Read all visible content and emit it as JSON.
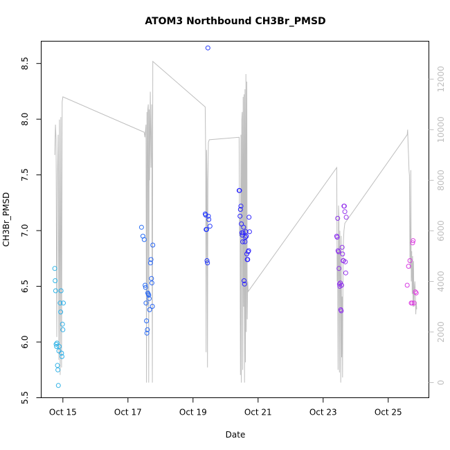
{
  "chart_data": {
    "type": "scatter",
    "title": "ATOM3 Northbound CH3Br_PMSD",
    "xlabel": "Date",
    "ylabel": "CH3Br_PMSD",
    "x_ticks": [
      "Oct 15",
      "Oct 17",
      "Oct 19",
      "Oct 21",
      "Oct 23",
      "Oct 25"
    ],
    "y_ticks": [
      "5.5",
      "6.0",
      "6.5",
      "7.0",
      "7.5",
      "8.0",
      "8.5"
    ],
    "y2_ticks": [
      "0",
      "2000",
      "4000",
      "6000",
      "8000",
      "10000",
      "12000"
    ],
    "xlim": [
      "2016-10-14 08:00",
      "2016-10-26 06:00"
    ],
    "ylim": [
      5.5,
      8.7
    ],
    "y2lim": [
      -600,
      13500
    ],
    "grid": false,
    "colors": {
      "points_start": "#2eb4e6",
      "points_mid": "#2020ff",
      "points_end": "#e03ce0",
      "secondary_line": "#bebebe",
      "axis": "#000000",
      "right_axis": "#bebebe"
    },
    "series": [
      {
        "type": "points",
        "points": [
          [
            "2016-10-14 18:00",
            6.66
          ],
          [
            "2016-10-14 18:20",
            6.55
          ],
          [
            "2016-10-14 18:40",
            6.46
          ],
          [
            "2016-10-14 19:00",
            5.98
          ],
          [
            "2016-10-14 19:20",
            5.96
          ],
          [
            "2016-10-14 19:40",
            5.99
          ],
          [
            "2016-10-14 20:00",
            5.79
          ],
          [
            "2016-10-14 20:20",
            5.75
          ],
          [
            "2016-10-14 20:40",
            5.61
          ],
          [
            "2016-10-14 21:00",
            5.92
          ],
          [
            "2016-10-14 21:20",
            5.96
          ],
          [
            "2016-10-14 22:00",
            6.35
          ],
          [
            "2016-10-14 22:20",
            6.27
          ],
          [
            "2016-10-14 22:40",
            6.46
          ],
          [
            "2016-10-14 23:00",
            5.9
          ],
          [
            "2016-10-14 23:20",
            5.87
          ],
          [
            "2016-10-14 23:40",
            6.16
          ],
          [
            "2016-10-15 00:00",
            6.11
          ],
          [
            "2016-10-15 00:20",
            6.35
          ],
          [
            "2016-10-17 10:00",
            7.03
          ],
          [
            "2016-10-17 11:00",
            6.95
          ],
          [
            "2016-10-17 12:00",
            6.92
          ],
          [
            "2016-10-17 12:40",
            6.51
          ],
          [
            "2016-10-17 13:00",
            6.49
          ],
          [
            "2016-10-17 13:20",
            6.35
          ],
          [
            "2016-10-17 13:40",
            6.19
          ],
          [
            "2016-10-17 14:00",
            6.08
          ],
          [
            "2016-10-17 14:20",
            6.11
          ],
          [
            "2016-10-17 14:40",
            6.44
          ],
          [
            "2016-10-17 15:00",
            6.43
          ],
          [
            "2016-10-17 15:20",
            6.42
          ],
          [
            "2016-10-17 15:40",
            6.39
          ],
          [
            "2016-10-17 16:00",
            6.29
          ],
          [
            "2016-10-17 16:40",
            6.71
          ],
          [
            "2016-10-17 17:00",
            6.74
          ],
          [
            "2016-10-17 17:20",
            6.57
          ],
          [
            "2016-10-17 17:40",
            6.53
          ],
          [
            "2016-10-17 18:00",
            6.32
          ],
          [
            "2016-10-17 18:20",
            6.87
          ],
          [
            "2016-10-19 09:00",
            7.15
          ],
          [
            "2016-10-19 09:20",
            7.14
          ],
          [
            "2016-10-19 09:40",
            7.01
          ],
          [
            "2016-10-19 10:00",
            7.01
          ],
          [
            "2016-10-19 10:20",
            6.73
          ],
          [
            "2016-10-19 10:40",
            6.71
          ],
          [
            "2016-10-19 11:00",
            8.64
          ],
          [
            "2016-10-19 11:20",
            7.13
          ],
          [
            "2016-10-19 11:40",
            7.1
          ],
          [
            "2016-10-19 12:30",
            7.04
          ],
          [
            "2016-10-20 10:00",
            7.36
          ],
          [
            "2016-10-20 10:20",
            7.36
          ],
          [
            "2016-10-20 10:40",
            7.13
          ],
          [
            "2016-10-20 11:00",
            7.19
          ],
          [
            "2016-10-20 11:20",
            7.22
          ],
          [
            "2016-10-20 11:40",
            7.06
          ],
          [
            "2016-10-20 12:00",
            6.98
          ],
          [
            "2016-10-20 12:20",
            6.96
          ],
          [
            "2016-10-20 12:40",
            6.9
          ],
          [
            "2016-10-20 13:00",
            6.98
          ],
          [
            "2016-10-20 13:20",
            7.03
          ],
          [
            "2016-10-20 13:40",
            6.55
          ],
          [
            "2016-10-20 14:00",
            6.52
          ],
          [
            "2016-10-20 14:20",
            6.9
          ],
          [
            "2016-10-20 14:40",
            6.94
          ],
          [
            "2016-10-20 15:00",
            6.99
          ],
          [
            "2016-10-20 15:20",
            6.95
          ],
          [
            "2016-10-20 15:40",
            6.79
          ],
          [
            "2016-10-20 16:00",
            6.74
          ],
          [
            "2016-10-20 16:20",
            6.74
          ],
          [
            "2016-10-20 16:40",
            6.81
          ],
          [
            "2016-10-20 17:00",
            6.82
          ],
          [
            "2016-10-20 17:20",
            7.12
          ],
          [
            "2016-10-20 17:40",
            6.99
          ],
          [
            "2016-10-23 10:00",
            6.95
          ],
          [
            "2016-10-23 10:20",
            6.94
          ],
          [
            "2016-10-23 10:40",
            7.11
          ],
          [
            "2016-10-23 11:00",
            6.82
          ],
          [
            "2016-10-23 11:20",
            6.81
          ],
          [
            "2016-10-23 11:40",
            6.66
          ],
          [
            "2016-10-23 12:00",
            6.52
          ],
          [
            "2016-10-23 12:20",
            6.5
          ],
          [
            "2016-10-23 12:40",
            6.53
          ],
          [
            "2016-10-23 13:00",
            6.29
          ],
          [
            "2016-10-23 13:20",
            6.28
          ],
          [
            "2016-10-23 13:40",
            6.51
          ],
          [
            "2016-10-23 14:00",
            6.85
          ],
          [
            "2016-10-23 14:20",
            6.79
          ],
          [
            "2016-10-23 14:40",
            6.73
          ],
          [
            "2016-10-23 15:00",
            6.73
          ],
          [
            "2016-10-23 15:20",
            7.22
          ],
          [
            "2016-10-23 15:40",
            7.22
          ],
          [
            "2016-10-23 16:00",
            7.17
          ],
          [
            "2016-10-23 16:20",
            6.72
          ],
          [
            "2016-10-23 16:40",
            6.62
          ],
          [
            "2016-10-23 17:00",
            7.12
          ],
          [
            "2016-10-25 14:00",
            6.51
          ],
          [
            "2016-10-25 15:00",
            6.68
          ],
          [
            "2016-10-25 16:00",
            6.73
          ],
          [
            "2016-10-25 17:00",
            6.35
          ],
          [
            "2016-10-25 17:40",
            6.35
          ],
          [
            "2016-10-25 18:00",
            6.89
          ],
          [
            "2016-10-25 18:20",
            6.91
          ],
          [
            "2016-10-25 19:00",
            6.35
          ],
          [
            "2016-10-25 20:00",
            6.45
          ],
          [
            "2016-10-25 20:40",
            6.44
          ]
        ]
      },
      {
        "type": "line",
        "axis": "right",
        "points": [
          [
            "2016-10-14 18:00",
            9000
          ],
          [
            "2016-10-14 18:30",
            10200
          ],
          [
            "2016-10-14 19:00",
            9600
          ],
          [
            "2016-10-14 19:30",
            1800
          ],
          [
            "2016-10-14 20:00",
            8200
          ],
          [
            "2016-10-14 20:30",
            9800
          ],
          [
            "2016-10-14 21:00",
            900
          ],
          [
            "2016-10-14 21:30",
            10400
          ],
          [
            "2016-10-14 22:00",
            300
          ],
          [
            "2016-10-14 22:30",
            10500
          ],
          [
            "2016-10-14 23:00",
            600
          ],
          [
            "2016-10-14 23:30",
            11100
          ],
          [
            "2016-10-15 00:00",
            11300
          ],
          [
            "2016-10-17 12:00",
            9900
          ],
          [
            "2016-10-17 12:30",
            9700
          ],
          [
            "2016-10-17 13:00",
            10000
          ],
          [
            "2016-10-17 13:20",
            10200
          ],
          [
            "2016-10-17 13:40",
            0
          ],
          [
            "2016-10-17 14:00",
            10700
          ],
          [
            "2016-10-17 14:20",
            3000
          ],
          [
            "2016-10-17 14:40",
            10800
          ],
          [
            "2016-10-17 15:00",
            11000
          ],
          [
            "2016-10-17 15:20",
            0
          ],
          [
            "2016-10-17 15:40",
            10800
          ],
          [
            "2016-10-17 16:00",
            8000
          ],
          [
            "2016-10-17 16:30",
            11500
          ],
          [
            "2016-10-17 17:00",
            8500
          ],
          [
            "2016-10-17 17:30",
            11000
          ],
          [
            "2016-10-17 18:00",
            0
          ],
          [
            "2016-10-17 18:20",
            12700
          ],
          [
            "2016-10-19 09:00",
            10900
          ],
          [
            "2016-10-19 09:20",
            9000
          ],
          [
            "2016-10-19 09:40",
            1200
          ],
          [
            "2016-10-19 10:00",
            9200
          ],
          [
            "2016-10-19 10:20",
            8000
          ],
          [
            "2016-10-19 10:40",
            600
          ],
          [
            "2016-10-19 11:00",
            8000
          ],
          [
            "2016-10-19 11:20",
            9500
          ],
          [
            "2016-10-19 12:00",
            9600
          ],
          [
            "2016-10-20 10:00",
            9700
          ],
          [
            "2016-10-20 10:20",
            5800
          ],
          [
            "2016-10-20 10:40",
            6500
          ],
          [
            "2016-10-20 11:00",
            300
          ],
          [
            "2016-10-20 11:20",
            9800
          ],
          [
            "2016-10-20 11:40",
            0
          ],
          [
            "2016-10-20 12:00",
            10400
          ],
          [
            "2016-10-20 12:20",
            10700
          ],
          [
            "2016-10-20 12:40",
            500
          ],
          [
            "2016-10-20 13:00",
            11300
          ],
          [
            "2016-10-20 13:20",
            3000
          ],
          [
            "2016-10-20 13:40",
            11400
          ],
          [
            "2016-10-20 14:00",
            0
          ],
          [
            "2016-10-20 14:20",
            11600
          ],
          [
            "2016-10-20 14:40",
            800
          ],
          [
            "2016-10-20 15:00",
            12200
          ],
          [
            "2016-10-20 15:20",
            2000
          ],
          [
            "2016-10-20 15:40",
            11900
          ],
          [
            "2016-10-20 16:00",
            2500
          ],
          [
            "2016-10-20 16:20",
            4000
          ],
          [
            "2016-10-20 16:40",
            3600
          ],
          [
            "2016-10-23 10:00",
            8500
          ],
          [
            "2016-10-23 10:20",
            4000
          ],
          [
            "2016-10-23 10:40",
            5200
          ],
          [
            "2016-10-23 11:00",
            500
          ],
          [
            "2016-10-23 11:20",
            7000
          ],
          [
            "2016-10-23 11:40",
            6500
          ],
          [
            "2016-10-23 12:00",
            400
          ],
          [
            "2016-10-23 12:20",
            6000
          ],
          [
            "2016-10-23 12:40",
            4300
          ],
          [
            "2016-10-23 13:00",
            0
          ],
          [
            "2016-10-23 13:20",
            5800
          ],
          [
            "2016-10-23 13:40",
            1000
          ],
          [
            "2016-10-23 14:00",
            3400
          ],
          [
            "2016-10-23 14:20",
            200
          ],
          [
            "2016-10-23 14:40",
            5000
          ],
          [
            "2016-10-23 15:00",
            5600
          ],
          [
            "2016-10-23 15:20",
            6000
          ],
          [
            "2016-10-23 16:00",
            6300
          ],
          [
            "2016-10-25 14:00",
            9800
          ],
          [
            "2016-10-25 14:20",
            10000
          ],
          [
            "2016-10-25 14:40",
            9400
          ],
          [
            "2016-10-25 15:00",
            9000
          ],
          [
            "2016-10-25 15:20",
            8400
          ],
          [
            "2016-10-25 15:40",
            8200
          ],
          [
            "2016-10-25 16:00",
            5000
          ],
          [
            "2016-10-25 16:20",
            4500
          ],
          [
            "2016-10-25 16:40",
            8400
          ],
          [
            "2016-10-25 17:00",
            4000
          ],
          [
            "2016-10-25 17:20",
            5200
          ],
          [
            "2016-10-25 17:40",
            3500
          ],
          [
            "2016-10-25 18:00",
            5000
          ],
          [
            "2016-10-25 18:20",
            3000
          ],
          [
            "2016-10-25 18:40",
            4800
          ],
          [
            "2016-10-25 19:00",
            3000
          ],
          [
            "2016-10-25 19:20",
            3700
          ],
          [
            "2016-10-25 19:40",
            4000
          ],
          [
            "2016-10-25 20:00",
            3600
          ],
          [
            "2016-10-25 20:20",
            2700
          ],
          [
            "2016-10-25 20:40",
            3200
          ],
          [
            "2016-10-25 21:00",
            2900
          ]
        ]
      }
    ]
  }
}
